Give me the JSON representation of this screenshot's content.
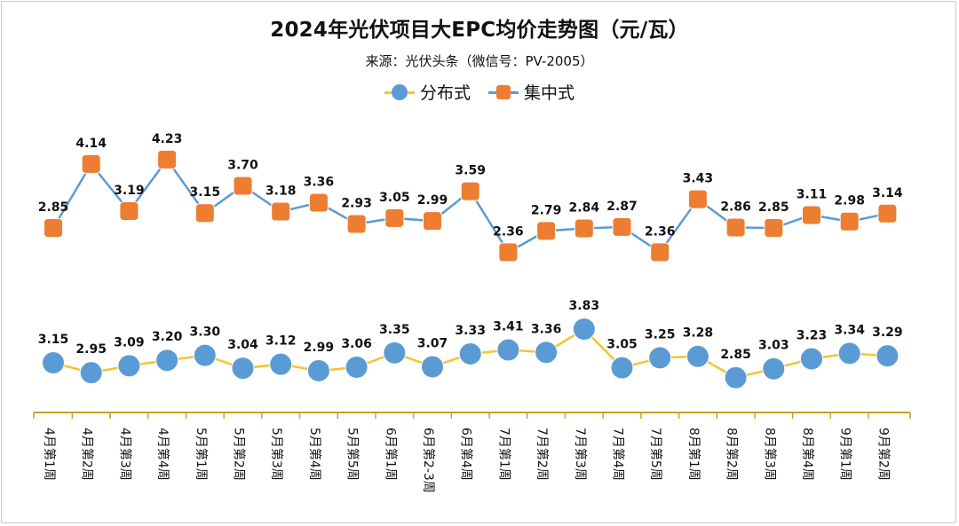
{
  "title": "2024年光伏项目大EPC均价走势图（元/瓦）",
  "subtitle": "来源：光伏头条（微信号：PV-2005）",
  "colors": {
    "distributed_line": "#f4c430",
    "distributed_marker": "#5b9bd5",
    "centralized_line": "#5b9bd5",
    "centralized_marker": "#ed7d31",
    "axis": "#c9a227"
  },
  "chart_data": {
    "type": "line",
    "categories": [
      "4月第1周",
      "4月第2周",
      "4月第3周",
      "4月第4周",
      "5月第1周",
      "5月第2周",
      "5月第3周",
      "5月第4周",
      "5月第5周",
      "6月第1周",
      "6月第2-3周",
      "6月第4周",
      "7月第1周",
      "7月第2周",
      "7月第3周",
      "7月第4周",
      "7月第5周",
      "8月第1周",
      "8月第2周",
      "8月第3周",
      "8月第4周",
      "9月第1周",
      "9月第2周"
    ],
    "series": [
      {
        "name": "分布式",
        "marker": "circle",
        "values": [
          3.15,
          2.95,
          3.09,
          3.2,
          3.3,
          3.04,
          3.12,
          2.99,
          3.06,
          3.35,
          3.07,
          3.33,
          3.41,
          3.36,
          3.83,
          3.05,
          3.25,
          3.28,
          2.85,
          3.03,
          3.23,
          3.34,
          3.29
        ]
      },
      {
        "name": "集中式",
        "marker": "square",
        "values": [
          2.85,
          4.14,
          3.19,
          4.23,
          3.15,
          3.7,
          3.18,
          3.36,
          2.93,
          3.05,
          2.99,
          3.59,
          2.36,
          2.79,
          2.84,
          2.87,
          2.36,
          3.43,
          2.86,
          2.85,
          3.11,
          2.98,
          3.14
        ]
      }
    ],
    "labels": {
      "distributed": [
        "3.15",
        "2.95",
        "3.09",
        "3.20",
        "3.30",
        "3.04",
        "3.12",
        "2.99",
        "3.06",
        "3.35",
        "3.07",
        "3.33",
        "3.41",
        "3.36",
        "3.83",
        "3.05",
        "3.25",
        "3.28",
        "2.85",
        "3.03",
        "3.23",
        "3.34",
        "3.29"
      ],
      "centralized": [
        "2.85",
        "4.14",
        "3.19",
        "4.23",
        "3.15",
        "3.70",
        "3.18",
        "3.36",
        "2.93",
        "3.05",
        "2.99",
        "3.59",
        "2.36",
        "2.79",
        "2.84",
        "2.87",
        "2.36",
        "3.43",
        "2.86",
        "2.85",
        "3.11",
        "2.98",
        "3.14"
      ]
    },
    "legend_position": "top-center",
    "grid": false,
    "y_axis_visible": false
  }
}
